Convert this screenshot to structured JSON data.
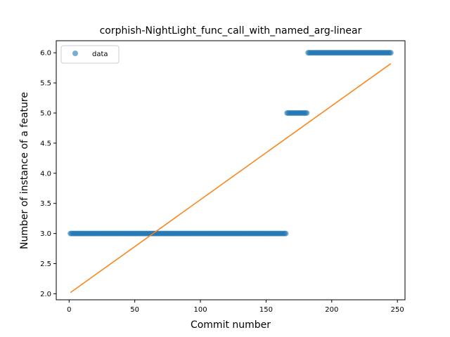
{
  "chart_data": {
    "type": "scatter",
    "title": "corphish-NightLight_func_call_with_named_arg-linear",
    "xlabel": "Commit number",
    "ylabel": "Number of instance of a feature",
    "xlim": [
      -9.8,
      255.8
    ],
    "ylim": [
      1.9,
      6.2
    ],
    "xticks": [
      0,
      50,
      100,
      150,
      200,
      250
    ],
    "yticks": [
      2.0,
      2.5,
      3.0,
      3.5,
      4.0,
      4.5,
      5.0,
      5.5,
      6.0
    ],
    "ytick_labels": [
      "2.0",
      "2.5",
      "3.0",
      "3.5",
      "4.0",
      "4.5",
      "5.0",
      "5.5",
      "6.0"
    ],
    "legend": {
      "placement": "top-left",
      "entries": [
        "data"
      ]
    },
    "series": [
      {
        "name": "data",
        "kind": "scatter",
        "color": "#1f77b4",
        "segments": [
          {
            "x_start": 1,
            "x_end": 165,
            "y": 3.0
          },
          {
            "x_start": 166,
            "x_end": 181,
            "y": 5.0
          },
          {
            "x_start": 182,
            "x_end": 245,
            "y": 6.0
          }
        ]
      },
      {
        "kind": "line",
        "color": "#ff7f0e",
        "x": [
          1,
          245
        ],
        "y": [
          2.02,
          5.82
        ]
      }
    ]
  }
}
